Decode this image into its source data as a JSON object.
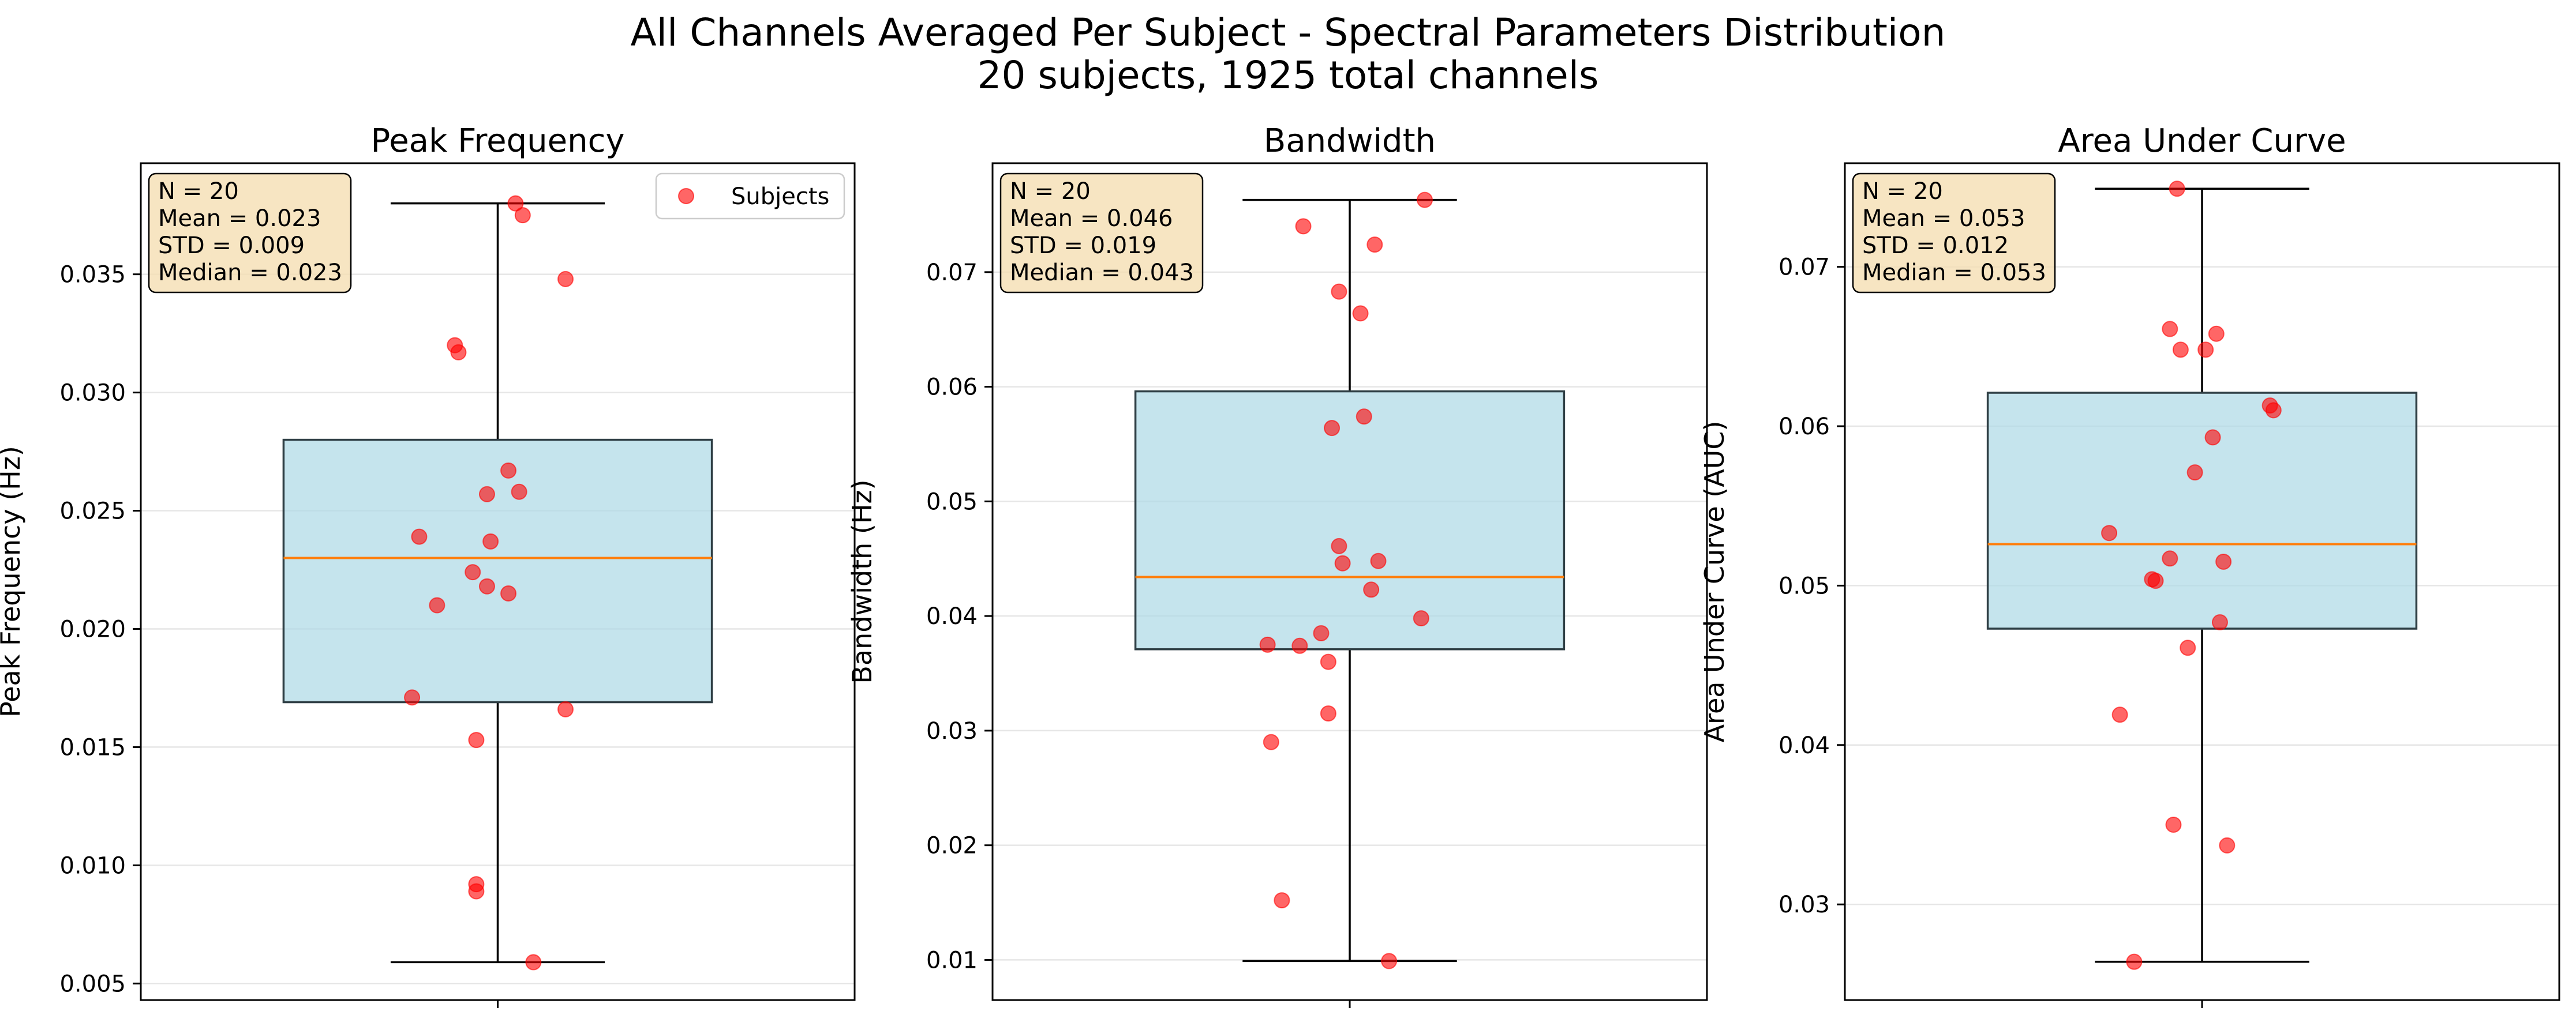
{
  "figure": {
    "title_line1": "All Channels Averaged Per Subject - Spectral Parameters Distribution",
    "title_line2": "20 subjects, 1925 total channels"
  },
  "colors": {
    "box_fill": "#add8e6",
    "box_edge": "#2f3f45",
    "median": "#ff7f0e",
    "point": "#ff0000",
    "stats_box_fill": "#f5deb3",
    "grid": "#e6e6e6"
  },
  "chart_data": [
    {
      "type": "box",
      "title": "Peak Frequency",
      "ylabel": "Peak Frequency (Hz)",
      "ylim": [
        0.0043,
        0.0397
      ],
      "yticks": [
        0.005,
        0.01,
        0.015,
        0.02,
        0.025,
        0.03,
        0.035
      ],
      "ytick_labels": [
        "0.005",
        "0.010",
        "0.015",
        "0.020",
        "0.025",
        "0.030",
        "0.035"
      ],
      "grid": true,
      "box": {
        "whisker_low": 0.0059,
        "q1": 0.0169,
        "median": 0.023,
        "q3": 0.028,
        "whisker_high": 0.038
      },
      "points": [
        0.038,
        0.0375,
        0.0348,
        0.032,
        0.0317,
        0.0267,
        0.0258,
        0.0257,
        0.0239,
        0.0237,
        0.0224,
        0.0218,
        0.0215,
        0.021,
        0.0171,
        0.0166,
        0.0153,
        0.0092,
        0.0089,
        0.0059
      ],
      "jitter": [
        0.05,
        0.07,
        0.19,
        -0.12,
        -0.11,
        0.03,
        0.06,
        -0.03,
        -0.22,
        -0.02,
        -0.07,
        -0.03,
        0.03,
        -0.17,
        -0.24,
        0.19,
        -0.06,
        -0.06,
        -0.06,
        0.1
      ],
      "stats": [
        "N = 20",
        "Mean = 0.023",
        "STD = 0.009",
        "Median = 0.023"
      ],
      "legend": {
        "label": "Subjects",
        "position": "top-right"
      }
    },
    {
      "type": "box",
      "title": "Bandwidth",
      "ylabel": "Bandwidth (Hz)",
      "ylim": [
        0.0065,
        0.0795
      ],
      "yticks": [
        0.01,
        0.02,
        0.03,
        0.04,
        0.05,
        0.06,
        0.07
      ],
      "ytick_labels": [
        "0.01",
        "0.02",
        "0.03",
        "0.04",
        "0.05",
        "0.06",
        "0.07"
      ],
      "grid": true,
      "box": {
        "whisker_low": 0.0099,
        "q1": 0.0371,
        "median": 0.0434,
        "q3": 0.0596,
        "whisker_high": 0.0763
      },
      "points": [
        0.0763,
        0.074,
        0.0724,
        0.0683,
        0.0664,
        0.0574,
        0.0564,
        0.0461,
        0.0448,
        0.0446,
        0.0423,
        0.0398,
        0.0385,
        0.0375,
        0.0374,
        0.036,
        0.0315,
        0.029,
        0.0152,
        0.0099
      ],
      "jitter": [
        0.21,
        -0.13,
        0.07,
        -0.03,
        0.03,
        0.04,
        -0.05,
        -0.03,
        0.08,
        -0.02,
        0.06,
        0.2,
        -0.08,
        -0.23,
        -0.14,
        -0.06,
        -0.06,
        -0.22,
        -0.19,
        0.11
      ],
      "stats": [
        "N = 20",
        "Mean = 0.046",
        "STD = 0.019",
        "Median = 0.043"
      ],
      "legend": null
    },
    {
      "type": "box",
      "title": "Area Under Curve",
      "ylabel": "Area Under Curve (AUC)",
      "ylim": [
        0.024,
        0.0765
      ],
      "yticks": [
        0.03,
        0.04,
        0.05,
        0.06,
        0.07
      ],
      "ytick_labels": [
        "0.03",
        "0.04",
        "0.05",
        "0.06",
        "0.07"
      ],
      "grid": true,
      "box": {
        "whisker_low": 0.0264,
        "q1": 0.0473,
        "median": 0.0526,
        "q3": 0.0621,
        "whisker_high": 0.0749
      },
      "points": [
        0.0749,
        0.0661,
        0.0658,
        0.0648,
        0.0648,
        0.0613,
        0.061,
        0.0593,
        0.0571,
        0.0533,
        0.0517,
        0.0515,
        0.0504,
        0.0503,
        0.0477,
        0.0461,
        0.0419,
        0.035,
        0.0337,
        0.0264
      ],
      "jitter": [
        -0.07,
        -0.09,
        0.04,
        -0.06,
        0.01,
        0.19,
        0.2,
        0.03,
        -0.02,
        -0.26,
        -0.09,
        0.06,
        -0.14,
        -0.13,
        0.05,
        -0.04,
        -0.23,
        -0.08,
        0.07,
        -0.19
      ],
      "stats": [
        "N = 20",
        "Mean = 0.053",
        "STD = 0.012",
        "Median = 0.053"
      ],
      "legend": null
    }
  ]
}
